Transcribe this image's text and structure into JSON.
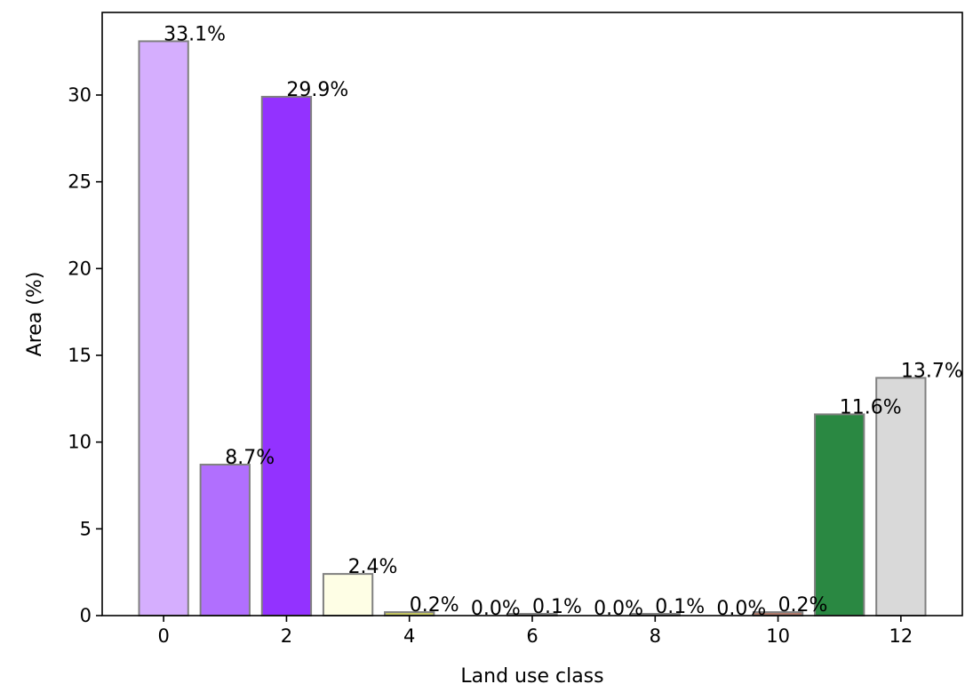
{
  "chart_data": {
    "type": "bar",
    "title": "",
    "xlabel": "Land use class",
    "ylabel": "Area (%)",
    "categories": [
      0,
      1,
      2,
      3,
      4,
      5,
      6,
      7,
      8,
      9,
      10,
      11,
      12
    ],
    "values": [
      33.1,
      8.7,
      29.9,
      2.4,
      0.2,
      0.0,
      0.1,
      0.0,
      0.1,
      0.0,
      0.2,
      11.6,
      13.7
    ],
    "data_labels": [
      "33.1%",
      "8.7%",
      "29.9%",
      "2.4%",
      "0.2%",
      "0.0%",
      "0.1%",
      "0.0%",
      "0.1%",
      "0.0%",
      "0.2%",
      "11.6%",
      "13.7%"
    ],
    "bar_colors": [
      "#d5aefe",
      "#b16ffe",
      "#9332ff",
      "#fefee5",
      "#c8ca62",
      "#e9e5e1",
      "#d9d4cf",
      "#e9e5e1",
      "#d9d4cf",
      "#e9e5e1",
      "#b07a6a",
      "#2a8842",
      "#d9d9d9"
    ],
    "bar_edge_color": "#808080",
    "xlim": [
      -1,
      13
    ],
    "ylim": [
      0,
      34.76
    ],
    "x_ticks": [
      0,
      2,
      4,
      6,
      8,
      10,
      12
    ],
    "x_tick_labels": [
      "0",
      "2",
      "4",
      "6",
      "8",
      "10",
      "12"
    ],
    "y_ticks": [
      0,
      5,
      10,
      15,
      20,
      25,
      30
    ],
    "y_tick_labels": [
      "0",
      "5",
      "10",
      "15",
      "20",
      "25",
      "30"
    ],
    "grid": false,
    "legend": "none"
  }
}
